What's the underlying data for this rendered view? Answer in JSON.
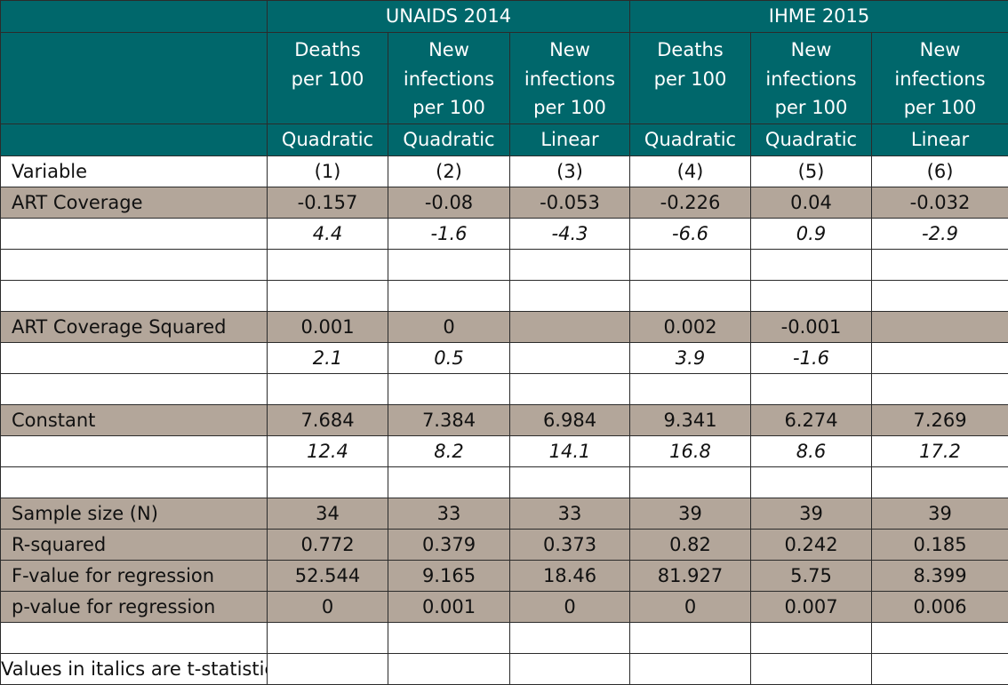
{
  "groups": [
    "UNAIDS 2014",
    "IHME 2015"
  ],
  "columns": [
    {
      "measure_lines": [
        "Deaths",
        "per 100"
      ],
      "model": "Quadratic",
      "number": "(1)"
    },
    {
      "measure_lines": [
        "New",
        "infections",
        "per 100"
      ],
      "model": "Quadratic",
      "number": "(2)"
    },
    {
      "measure_lines": [
        "New",
        "infections",
        "per 100"
      ],
      "model": "Linear",
      "number": "(3)"
    },
    {
      "measure_lines": [
        "Deaths",
        "per 100"
      ],
      "model": "Quadratic",
      "number": "(4)"
    },
    {
      "measure_lines": [
        "New",
        "infections",
        "per 100"
      ],
      "model": "Quadratic",
      "number": "(5)"
    },
    {
      "measure_lines": [
        "New",
        "infections",
        "per 100"
      ],
      "model": "Linear",
      "number": "(6)"
    }
  ],
  "variable_header": "Variable",
  "rows": [
    {
      "shade": "tan",
      "italic": false,
      "label": "ART Coverage",
      "values": [
        "-0.157",
        "-0.08",
        "-0.053",
        "-0.226",
        "0.04",
        "-0.032"
      ]
    },
    {
      "shade": "white",
      "italic": true,
      "label": "",
      "values": [
        "4.4",
        "-1.6",
        "-4.3",
        "-6.6",
        "0.9",
        "-2.9"
      ]
    },
    {
      "shade": "white",
      "italic": false,
      "label": "",
      "values": [
        "",
        "",
        "",
        "",
        "",
        ""
      ]
    },
    {
      "shade": "white",
      "italic": false,
      "label": "",
      "values": [
        "",
        "",
        "",
        "",
        "",
        ""
      ]
    },
    {
      "shade": "tan",
      "italic": false,
      "label": "ART Coverage Squared",
      "values": [
        "0.001",
        "0",
        "",
        "0.002",
        "-0.001",
        ""
      ]
    },
    {
      "shade": "white",
      "italic": true,
      "label": "",
      "values": [
        "2.1",
        "0.5",
        "",
        "3.9",
        "-1.6",
        ""
      ]
    },
    {
      "shade": "white",
      "italic": false,
      "label": "",
      "values": [
        "",
        "",
        "",
        "",
        "",
        ""
      ]
    },
    {
      "shade": "tan",
      "italic": false,
      "label": "Constant",
      "values": [
        "7.684",
        "7.384",
        "6.984",
        "9.341",
        "6.274",
        "7.269"
      ]
    },
    {
      "shade": "white",
      "italic": true,
      "label": "",
      "values": [
        "12.4",
        "8.2",
        "14.1",
        "16.8",
        "8.6",
        "17.2"
      ]
    },
    {
      "shade": "white",
      "italic": false,
      "label": "",
      "values": [
        "",
        "",
        "",
        "",
        "",
        ""
      ]
    },
    {
      "shade": "tan",
      "italic": false,
      "label": "Sample size (N)",
      "values": [
        "34",
        "33",
        "33",
        "39",
        "39",
        "39"
      ]
    },
    {
      "shade": "tan",
      "italic": false,
      "label": "R-squared",
      "values": [
        "0.772",
        "0.379",
        "0.373",
        "0.82",
        "0.242",
        "0.185"
      ]
    },
    {
      "shade": "tan",
      "italic": false,
      "label": "F-value for regression",
      "values": [
        "52.544",
        "9.165",
        "18.46",
        "81.927",
        "5.75",
        "8.399"
      ]
    },
    {
      "shade": "tan",
      "italic": false,
      "label": "p-value for regression",
      "values": [
        "0",
        "0.001",
        "0",
        "0",
        "0.007",
        "0.006"
      ]
    },
    {
      "shade": "white",
      "italic": false,
      "label": "",
      "values": [
        "",
        "",
        "",
        "",
        "",
        ""
      ]
    }
  ],
  "footnote": "Values in italics are t-statistics",
  "colors": {
    "header_teal": "#00676b",
    "row_tan": "#b3a69a",
    "border": "#2b2b2b"
  }
}
